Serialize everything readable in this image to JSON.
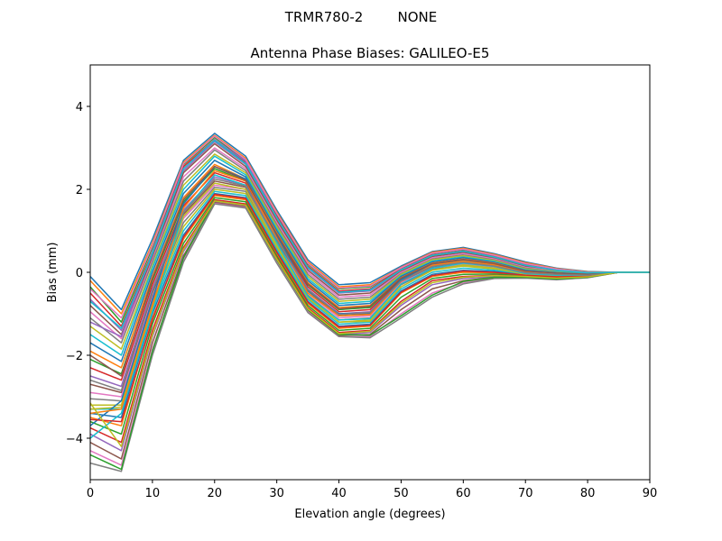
{
  "chart_data": {
    "type": "line",
    "suptitle": "TRMR780-2        NONE",
    "title": "Antenna Phase Biases: GALILEO-E5",
    "xlabel": "Elevation angle (degrees)",
    "ylabel": "Bias (mm)",
    "xlim": [
      0,
      90
    ],
    "ylim": [
      -5,
      5
    ],
    "xticks": [
      0,
      10,
      20,
      30,
      40,
      50,
      60,
      70,
      80,
      90
    ],
    "yticks": [
      -4,
      -2,
      0,
      2,
      4
    ],
    "grid": false,
    "legend": "none",
    "x": [
      0,
      5,
      10,
      15,
      20,
      25,
      30,
      35,
      40,
      45,
      50,
      55,
      60,
      65,
      70,
      75,
      80,
      85,
      90
    ],
    "palette": [
      "#1f77b4",
      "#ff7f0e",
      "#2ca02c",
      "#d62728",
      "#9467bd",
      "#8c564b",
      "#e377c2",
      "#7f7f7f",
      "#bcbd22",
      "#17becf"
    ],
    "series": [
      {
        "values": [
          -0.1,
          -0.9,
          0.8,
          2.7,
          3.35,
          2.8,
          1.5,
          0.3,
          -0.3,
          -0.25,
          0.15,
          0.5,
          0.6,
          0.45,
          0.25,
          0.1,
          0.02,
          0.0,
          0.0
        ]
      },
      {
        "values": [
          -0.2,
          -1.0,
          0.7,
          2.65,
          3.3,
          2.75,
          1.45,
          0.25,
          -0.35,
          -0.3,
          0.12,
          0.48,
          0.58,
          0.43,
          0.23,
          0.09,
          0.01,
          0.0,
          0.0
        ]
      },
      {
        "values": [
          -0.35,
          -1.2,
          0.6,
          2.6,
          3.25,
          2.7,
          1.4,
          0.2,
          -0.4,
          -0.35,
          0.1,
          0.45,
          0.55,
          0.4,
          0.2,
          0.08,
          0.0,
          0.0,
          0.0
        ]
      },
      {
        "values": [
          -0.5,
          -1.3,
          0.5,
          2.55,
          3.2,
          2.65,
          1.35,
          0.15,
          -0.45,
          -0.4,
          0.08,
          0.42,
          0.52,
          0.38,
          0.18,
          0.06,
          -0.01,
          0.0,
          0.0
        ]
      },
      {
        "values": [
          -0.65,
          -1.4,
          0.4,
          2.45,
          3.15,
          2.6,
          1.3,
          0.1,
          -0.5,
          -0.45,
          0.05,
          0.4,
          0.5,
          0.36,
          0.16,
          0.05,
          -0.02,
          0.0,
          0.0
        ]
      },
      {
        "values": [
          -0.8,
          -1.5,
          0.35,
          2.4,
          3.1,
          2.55,
          1.25,
          0.05,
          -0.55,
          -0.5,
          0.02,
          0.38,
          0.48,
          0.34,
          0.14,
          0.04,
          -0.02,
          0.0,
          0.0
        ]
      },
      {
        "values": [
          -0.95,
          -1.6,
          0.3,
          2.3,
          3.0,
          2.5,
          1.2,
          0.0,
          -0.6,
          -0.55,
          0.0,
          0.35,
          0.45,
          0.32,
          0.12,
          0.03,
          -0.03,
          0.0,
          0.0
        ]
      },
      {
        "values": [
          -1.1,
          -1.7,
          0.25,
          2.2,
          2.95,
          2.45,
          1.15,
          -0.05,
          -0.65,
          -0.6,
          -0.03,
          0.32,
          0.42,
          0.3,
          0.1,
          0.02,
          -0.03,
          0.0,
          0.0
        ]
      },
      {
        "values": [
          -1.3,
          -1.85,
          0.15,
          2.1,
          2.85,
          2.4,
          1.1,
          -0.1,
          -0.7,
          -0.65,
          -0.05,
          0.3,
          0.4,
          0.28,
          0.08,
          0.01,
          -0.04,
          0.0,
          0.0
        ]
      },
      {
        "values": [
          -1.5,
          -2.0,
          0.1,
          2.0,
          2.8,
          2.35,
          1.05,
          -0.15,
          -0.75,
          -0.7,
          -0.08,
          0.27,
          0.37,
          0.26,
          0.06,
          0.0,
          -0.04,
          0.0,
          0.0
        ]
      },
      {
        "values": [
          -1.7,
          -2.15,
          0.0,
          1.9,
          2.7,
          2.3,
          1.0,
          -0.2,
          -0.8,
          -0.75,
          -0.1,
          0.25,
          0.35,
          0.24,
          0.05,
          -0.01,
          -0.05,
          0.0,
          0.0
        ]
      },
      {
        "values": [
          -1.9,
          -2.3,
          -0.1,
          1.8,
          2.6,
          2.25,
          0.95,
          -0.25,
          -0.85,
          -0.8,
          -0.13,
          0.22,
          0.32,
          0.22,
          0.03,
          -0.02,
          -0.05,
          0.0,
          0.0
        ]
      },
      {
        "values": [
          -2.1,
          -2.45,
          -0.2,
          1.7,
          2.5,
          2.2,
          0.9,
          -0.3,
          -0.9,
          -0.85,
          -0.15,
          0.2,
          0.3,
          0.2,
          0.02,
          -0.03,
          -0.06,
          0.0,
          0.0
        ]
      },
      {
        "values": [
          -2.3,
          -2.6,
          -0.3,
          1.6,
          2.4,
          2.15,
          0.85,
          -0.35,
          -0.95,
          -0.9,
          -0.18,
          0.17,
          0.27,
          0.18,
          0.0,
          -0.04,
          -0.06,
          0.0,
          0.0
        ]
      },
      {
        "values": [
          -2.5,
          -2.75,
          -0.4,
          1.5,
          2.3,
          2.1,
          0.8,
          -0.4,
          -1.0,
          -0.95,
          -0.2,
          0.15,
          0.25,
          0.16,
          -0.01,
          -0.05,
          -0.07,
          0.0,
          0.0
        ]
      },
      {
        "values": [
          -2.7,
          -2.9,
          -0.5,
          1.4,
          2.2,
          2.05,
          0.75,
          -0.45,
          -1.05,
          -1.0,
          -0.23,
          0.12,
          0.22,
          0.14,
          -0.02,
          -0.06,
          -0.07,
          0.0,
          0.0
        ]
      },
      {
        "values": [
          -2.9,
          -3.0,
          -0.6,
          1.3,
          2.1,
          2.0,
          0.7,
          -0.5,
          -1.1,
          -1.05,
          -0.25,
          0.1,
          0.2,
          0.12,
          -0.03,
          -0.07,
          -0.08,
          0.0,
          0.0
        ]
      },
      {
        "values": [
          -3.05,
          -3.1,
          -0.7,
          1.2,
          2.05,
          1.95,
          0.65,
          -0.55,
          -1.15,
          -1.1,
          -0.3,
          0.07,
          0.17,
          0.1,
          -0.04,
          -0.08,
          -0.08,
          0.0,
          0.0
        ]
      },
      {
        "values": [
          -3.2,
          -3.2,
          -0.8,
          1.1,
          2.0,
          1.9,
          0.6,
          -0.6,
          -1.2,
          -1.15,
          -0.35,
          0.05,
          0.15,
          0.08,
          -0.05,
          -0.09,
          -0.09,
          0.0,
          0.0
        ]
      },
      {
        "values": [
          -3.3,
          -3.3,
          -0.9,
          1.0,
          1.95,
          1.85,
          0.55,
          -0.65,
          -1.25,
          -1.2,
          -0.4,
          0.0,
          0.1,
          0.05,
          -0.06,
          -0.1,
          -0.09,
          0.0,
          0.0
        ]
      },
      {
        "values": [
          -3.4,
          -3.5,
          -1.0,
          0.9,
          1.9,
          1.8,
          0.5,
          -0.7,
          -1.3,
          -1.25,
          -0.45,
          -0.05,
          0.05,
          0.02,
          -0.07,
          -0.11,
          -0.1,
          0.0,
          0.0
        ]
      },
      {
        "values": [
          -3.5,
          -3.7,
          -1.1,
          0.8,
          1.85,
          1.75,
          0.45,
          -0.75,
          -1.35,
          -1.3,
          -0.5,
          -0.1,
          0.0,
          -0.01,
          -0.08,
          -0.12,
          -0.1,
          0.0,
          0.0
        ]
      },
      {
        "values": [
          -3.6,
          -3.9,
          -1.25,
          0.7,
          1.8,
          1.7,
          0.4,
          -0.8,
          -1.4,
          -1.35,
          -0.6,
          -0.15,
          -0.05,
          -0.04,
          -0.09,
          -0.13,
          -0.11,
          0.0,
          0.0
        ]
      },
      {
        "values": [
          -3.75,
          -4.1,
          -1.4,
          0.6,
          1.75,
          1.65,
          0.35,
          -0.85,
          -1.45,
          -1.4,
          -0.7,
          -0.2,
          -0.1,
          -0.07,
          -0.1,
          -0.14,
          -0.11,
          0.0,
          0.0
        ]
      },
      {
        "values": [
          -3.9,
          -4.3,
          -1.55,
          0.5,
          1.7,
          1.6,
          0.3,
          -0.9,
          -1.5,
          -1.45,
          -0.8,
          -0.3,
          -0.15,
          -0.1,
          -0.11,
          -0.15,
          -0.12,
          0.0,
          0.0
        ]
      },
      {
        "values": [
          -4.1,
          -4.5,
          -1.7,
          0.4,
          1.68,
          1.58,
          0.27,
          -0.92,
          -1.52,
          -1.5,
          -0.9,
          -0.4,
          -0.2,
          -0.12,
          -0.12,
          -0.16,
          -0.12,
          0.0,
          0.0
        ]
      },
      {
        "values": [
          -4.3,
          -4.65,
          -1.85,
          0.3,
          1.66,
          1.56,
          0.25,
          -0.95,
          -1.55,
          -1.55,
          -1.0,
          -0.5,
          -0.25,
          -0.14,
          -0.13,
          -0.17,
          -0.13,
          0.0,
          0.0
        ]
      },
      {
        "values": [
          -4.6,
          -4.8,
          -2.0,
          0.25,
          1.65,
          1.55,
          0.22,
          -0.97,
          -1.55,
          -1.58,
          -1.1,
          -0.6,
          -0.28,
          -0.15,
          -0.14,
          -0.18,
          -0.13,
          0.0,
          0.0
        ]
      },
      {
        "values": [
          -3.3,
          -3.25,
          -0.85,
          1.35,
          2.15,
          2.0,
          0.65,
          -0.62,
          -1.2,
          -1.18,
          -0.35,
          0.05,
          0.18,
          0.1,
          -0.05,
          -0.09,
          -0.09,
          0.0,
          0.0
        ]
      },
      {
        "values": [
          -4.0,
          -3.4,
          -0.95,
          1.45,
          2.35,
          2.1,
          0.72,
          -0.58,
          -1.15,
          -1.12,
          -0.28,
          0.1,
          0.22,
          0.14,
          -0.03,
          -0.07,
          -0.08,
          0.0,
          0.0
        ]
      },
      {
        "values": [
          -3.7,
          -3.1,
          -0.65,
          1.65,
          2.55,
          2.25,
          0.88,
          -0.45,
          -1.0,
          -0.98,
          -0.18,
          0.2,
          0.3,
          0.2,
          0.02,
          -0.03,
          -0.06,
          0.0,
          0.0
        ]
      },
      {
        "values": [
          -3.4,
          -3.3,
          -0.8,
          1.55,
          2.45,
          2.2,
          0.82,
          -0.5,
          -1.05,
          -1.02,
          -0.22,
          0.17,
          0.27,
          0.18,
          0.0,
          -0.04,
          -0.06,
          0.0,
          0.0
        ]
      },
      {
        "values": [
          -4.4,
          -4.75,
          -1.9,
          0.35,
          1.72,
          1.62,
          0.3,
          -0.9,
          -1.5,
          -1.52,
          -1.05,
          -0.55,
          -0.22,
          -0.12,
          -0.12,
          -0.16,
          -0.12,
          0.0,
          0.0
        ]
      },
      {
        "values": [
          -3.55,
          -3.6,
          -1.15,
          0.85,
          1.88,
          1.78,
          0.48,
          -0.72,
          -1.32,
          -1.28,
          -0.48,
          -0.08,
          0.03,
          0.0,
          -0.07,
          -0.11,
          -0.1,
          0.0,
          0.0
        ]
      },
      {
        "values": [
          -1.2,
          -1.55,
          0.5,
          2.5,
          3.2,
          2.68,
          1.32,
          0.12,
          -0.48,
          -0.42,
          0.06,
          0.41,
          0.51,
          0.37,
          0.17,
          0.05,
          -0.01,
          0.0,
          0.0
        ]
      },
      {
        "values": [
          -2.0,
          -2.5,
          -0.15,
          1.75,
          2.55,
          2.22,
          0.92,
          -0.28,
          -0.88,
          -0.82,
          -0.14,
          0.21,
          0.31,
          0.21,
          0.03,
          -0.02,
          -0.05,
          0.0,
          0.0
        ]
      },
      {
        "values": [
          -0.4,
          -1.1,
          0.65,
          2.62,
          3.28,
          2.72,
          1.42,
          0.22,
          -0.38,
          -0.33,
          0.11,
          0.46,
          0.56,
          0.41,
          0.21,
          0.08,
          0.0,
          0.0,
          0.0
        ]
      },
      {
        "values": [
          -2.6,
          -2.85,
          -0.45,
          1.45,
          2.25,
          2.08,
          0.78,
          -0.42,
          -1.02,
          -0.97,
          -0.21,
          0.14,
          0.24,
          0.15,
          -0.01,
          -0.05,
          -0.07,
          0.0,
          0.0
        ]
      },
      {
        "values": [
          -3.15,
          -4.2,
          -1.5,
          0.55,
          1.72,
          1.62,
          0.32,
          -0.88,
          -1.48,
          -1.42,
          -0.75,
          -0.25,
          -0.12,
          -0.08,
          -0.1,
          -0.14,
          -0.11,
          0.0,
          0.0
        ]
      },
      {
        "values": [
          -0.7,
          -1.35,
          0.45,
          2.5,
          3.18,
          2.62,
          1.32,
          0.12,
          -0.48,
          -0.43,
          0.06,
          0.41,
          0.51,
          0.37,
          0.17,
          0.05,
          -0.01,
          0.0,
          0.0
        ]
      }
    ]
  }
}
